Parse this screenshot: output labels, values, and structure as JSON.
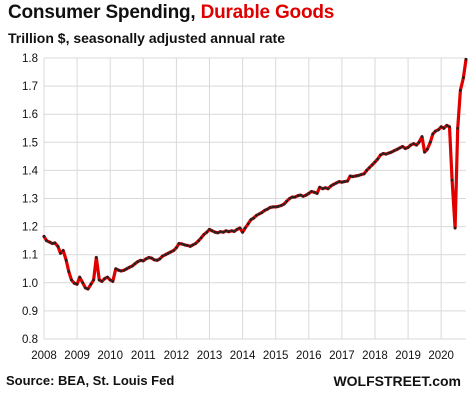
{
  "chart_data": {
    "type": "line",
    "title_main": "Consumer Spending,",
    "title_accent": "Durable Goods",
    "subtitle": "Trillion $, seasonally adjusted annual rate",
    "source": "Source: BEA, St. Louis Fed",
    "brand": "WOLFSTREET.com",
    "xlim": [
      2008,
      2020.75
    ],
    "ylim": [
      0.8,
      1.8
    ],
    "x_ticks": [
      2008,
      2009,
      2010,
      2011,
      2012,
      2013,
      2014,
      2015,
      2016,
      2017,
      2018,
      2019,
      2020
    ],
    "y_ticks": [
      "0.8",
      "0.9",
      "1.0",
      "1.1",
      "1.2",
      "1.3",
      "1.4",
      "1.5",
      "1.6",
      "1.7",
      "1.8"
    ],
    "grid": true,
    "line_color": "#e00000",
    "marker_color": "#222222",
    "series": [
      {
        "points": [
          [
            2008.0,
            1.165
          ],
          [
            2008.08,
            1.15
          ],
          [
            2008.17,
            1.145
          ],
          [
            2008.25,
            1.14
          ],
          [
            2008.33,
            1.142
          ],
          [
            2008.42,
            1.13
          ],
          [
            2008.5,
            1.105
          ],
          [
            2008.58,
            1.115
          ],
          [
            2008.67,
            1.08
          ],
          [
            2008.75,
            1.04
          ],
          [
            2008.83,
            1.01
          ],
          [
            2008.92,
            0.998
          ],
          [
            2009.0,
            0.995
          ],
          [
            2009.08,
            1.02
          ],
          [
            2009.17,
            1.0
          ],
          [
            2009.25,
            0.982
          ],
          [
            2009.33,
            0.978
          ],
          [
            2009.42,
            0.995
          ],
          [
            2009.5,
            1.01
          ],
          [
            2009.58,
            1.09
          ],
          [
            2009.67,
            1.01
          ],
          [
            2009.75,
            1.005
          ],
          [
            2009.83,
            1.015
          ],
          [
            2009.92,
            1.02
          ],
          [
            2010.0,
            1.01
          ],
          [
            2010.08,
            1.005
          ],
          [
            2010.17,
            1.05
          ],
          [
            2010.25,
            1.045
          ],
          [
            2010.33,
            1.042
          ],
          [
            2010.42,
            1.045
          ],
          [
            2010.5,
            1.05
          ],
          [
            2010.58,
            1.055
          ],
          [
            2010.67,
            1.06
          ],
          [
            2010.75,
            1.068
          ],
          [
            2010.83,
            1.075
          ],
          [
            2010.92,
            1.08
          ],
          [
            2011.0,
            1.078
          ],
          [
            2011.08,
            1.085
          ],
          [
            2011.17,
            1.09
          ],
          [
            2011.25,
            1.088
          ],
          [
            2011.33,
            1.082
          ],
          [
            2011.42,
            1.08
          ],
          [
            2011.5,
            1.085
          ],
          [
            2011.58,
            1.095
          ],
          [
            2011.67,
            1.1
          ],
          [
            2011.75,
            1.105
          ],
          [
            2011.83,
            1.11
          ],
          [
            2011.92,
            1.115
          ],
          [
            2012.0,
            1.125
          ],
          [
            2012.08,
            1.14
          ],
          [
            2012.17,
            1.138
          ],
          [
            2012.25,
            1.135
          ],
          [
            2012.33,
            1.133
          ],
          [
            2012.42,
            1.13
          ],
          [
            2012.5,
            1.135
          ],
          [
            2012.58,
            1.14
          ],
          [
            2012.67,
            1.15
          ],
          [
            2012.75,
            1.16
          ],
          [
            2012.83,
            1.172
          ],
          [
            2012.92,
            1.18
          ],
          [
            2013.0,
            1.19
          ],
          [
            2013.08,
            1.185
          ],
          [
            2013.17,
            1.18
          ],
          [
            2013.25,
            1.178
          ],
          [
            2013.33,
            1.182
          ],
          [
            2013.42,
            1.18
          ],
          [
            2013.5,
            1.185
          ],
          [
            2013.58,
            1.182
          ],
          [
            2013.67,
            1.185
          ],
          [
            2013.75,
            1.183
          ],
          [
            2013.83,
            1.19
          ],
          [
            2013.92,
            1.195
          ],
          [
            2014.0,
            1.18
          ],
          [
            2014.08,
            1.195
          ],
          [
            2014.17,
            1.21
          ],
          [
            2014.25,
            1.225
          ],
          [
            2014.33,
            1.23
          ],
          [
            2014.42,
            1.24
          ],
          [
            2014.5,
            1.245
          ],
          [
            2014.58,
            1.25
          ],
          [
            2014.67,
            1.258
          ],
          [
            2014.75,
            1.262
          ],
          [
            2014.83,
            1.268
          ],
          [
            2014.92,
            1.27
          ],
          [
            2015.0,
            1.27
          ],
          [
            2015.08,
            1.272
          ],
          [
            2015.17,
            1.275
          ],
          [
            2015.25,
            1.28
          ],
          [
            2015.33,
            1.29
          ],
          [
            2015.42,
            1.3
          ],
          [
            2015.5,
            1.305
          ],
          [
            2015.58,
            1.305
          ],
          [
            2015.67,
            1.31
          ],
          [
            2015.75,
            1.312
          ],
          [
            2015.83,
            1.308
          ],
          [
            2015.92,
            1.312
          ],
          [
            2016.0,
            1.318
          ],
          [
            2016.08,
            1.325
          ],
          [
            2016.17,
            1.322
          ],
          [
            2016.25,
            1.318
          ],
          [
            2016.33,
            1.34
          ],
          [
            2016.42,
            1.335
          ],
          [
            2016.5,
            1.338
          ],
          [
            2016.58,
            1.335
          ],
          [
            2016.67,
            1.345
          ],
          [
            2016.75,
            1.35
          ],
          [
            2016.83,
            1.355
          ],
          [
            2016.92,
            1.36
          ],
          [
            2017.0,
            1.358
          ],
          [
            2017.08,
            1.36
          ],
          [
            2017.17,
            1.362
          ],
          [
            2017.25,
            1.38
          ],
          [
            2017.33,
            1.378
          ],
          [
            2017.42,
            1.38
          ],
          [
            2017.5,
            1.382
          ],
          [
            2017.58,
            1.385
          ],
          [
            2017.67,
            1.388
          ],
          [
            2017.75,
            1.4
          ],
          [
            2017.83,
            1.41
          ],
          [
            2017.92,
            1.42
          ],
          [
            2018.0,
            1.43
          ],
          [
            2018.08,
            1.44
          ],
          [
            2018.17,
            1.455
          ],
          [
            2018.25,
            1.46
          ],
          [
            2018.33,
            1.458
          ],
          [
            2018.42,
            1.462
          ],
          [
            2018.5,
            1.465
          ],
          [
            2018.58,
            1.47
          ],
          [
            2018.67,
            1.475
          ],
          [
            2018.75,
            1.48
          ],
          [
            2018.83,
            1.485
          ],
          [
            2018.92,
            1.478
          ],
          [
            2019.0,
            1.482
          ],
          [
            2019.08,
            1.49
          ],
          [
            2019.17,
            1.495
          ],
          [
            2019.25,
            1.49
          ],
          [
            2019.33,
            1.5
          ],
          [
            2019.42,
            1.52
          ],
          [
            2019.5,
            1.465
          ],
          [
            2019.58,
            1.475
          ],
          [
            2019.67,
            1.5
          ],
          [
            2019.75,
            1.53
          ],
          [
            2019.83,
            1.54
          ],
          [
            2019.92,
            1.545
          ],
          [
            2020.0,
            1.555
          ],
          [
            2020.08,
            1.55
          ],
          [
            2020.17,
            1.56
          ],
          [
            2020.25,
            1.555
          ],
          [
            2020.33,
            1.365
          ],
          [
            2020.42,
            1.195
          ],
          [
            2020.5,
            1.55
          ],
          [
            2020.58,
            1.685
          ],
          [
            2020.67,
            1.73
          ],
          [
            2020.75,
            1.795
          ]
        ]
      }
    ]
  }
}
